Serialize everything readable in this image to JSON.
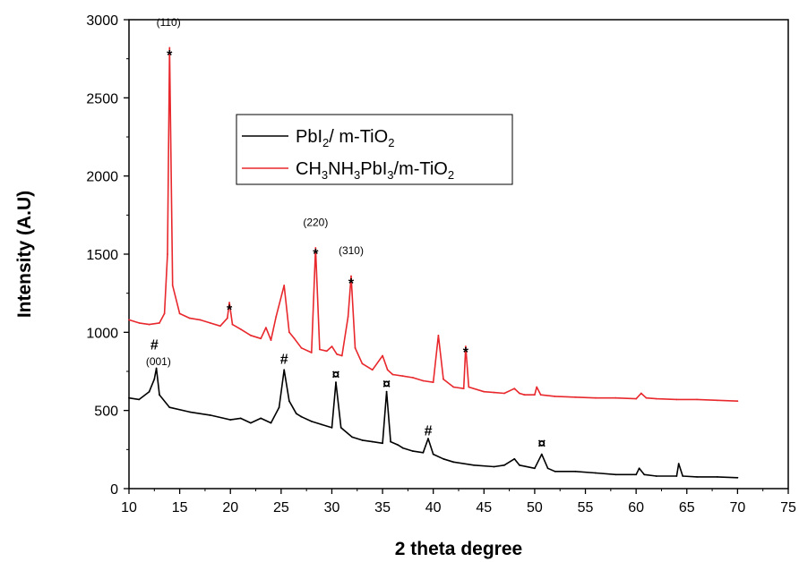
{
  "chart_data": {
    "type": "line",
    "xlabel": "2 theta degree",
    "ylabel": "Intensity (A.U)",
    "xlim": [
      10,
      75
    ],
    "ylim": [
      0,
      3000
    ],
    "xticks": [
      10,
      15,
      20,
      25,
      30,
      35,
      40,
      45,
      50,
      55,
      60,
      65,
      70,
      75
    ],
    "yticks": [
      0,
      500,
      1000,
      1500,
      2000,
      2500,
      3000
    ],
    "grid": false,
    "legend_position": "upper-center",
    "series": [
      {
        "name": "PbI2/ m-TiO2",
        "legend_parts": [
          [
            "PbI",
            ""
          ],
          [
            "2",
            "sub"
          ],
          [
            "/ m-TiO",
            ""
          ],
          [
            "2",
            "sub"
          ]
        ],
        "color": "#000000",
        "x": [
          10,
          11,
          12,
          12.5,
          12.7,
          13,
          14,
          16,
          18,
          20,
          21,
          22,
          23,
          24,
          24.8,
          25.3,
          25.8,
          26.5,
          27,
          28,
          29,
          30,
          30.4,
          30.9,
          32,
          33,
          34,
          35,
          35.4,
          35.8,
          36.5,
          37,
          38,
          39,
          39.5,
          40,
          41,
          42,
          44,
          46,
          47,
          48,
          48.5,
          50,
          50.7,
          51.3,
          52,
          54,
          56,
          58,
          60,
          60.3,
          60.8,
          62,
          64,
          64.2,
          64.6,
          66,
          68,
          70
        ],
        "y": [
          580,
          570,
          620,
          700,
          770,
          600,
          520,
          490,
          470,
          440,
          450,
          420,
          450,
          420,
          520,
          760,
          560,
          480,
          460,
          430,
          410,
          390,
          680,
          390,
          330,
          310,
          300,
          290,
          620,
          300,
          280,
          260,
          240,
          230,
          320,
          220,
          190,
          170,
          150,
          140,
          150,
          190,
          150,
          130,
          220,
          130,
          110,
          110,
          100,
          90,
          90,
          130,
          90,
          80,
          80,
          160,
          80,
          75,
          75,
          70
        ]
      },
      {
        "name": "CH3NH3PbI3/m-TiO2",
        "legend_parts": [
          [
            "CH",
            ""
          ],
          [
            "3",
            "sub"
          ],
          [
            "NH",
            ""
          ],
          [
            "3",
            "sub"
          ],
          [
            "PbI",
            ""
          ],
          [
            "3",
            "sub"
          ],
          [
            "/m-TiO",
            ""
          ],
          [
            "2",
            "sub"
          ]
        ],
        "color": "#e8282c",
        "x": [
          10,
          11,
          12,
          13,
          13.5,
          13.8,
          14.0,
          14.3,
          15,
          16,
          17,
          18,
          19,
          19.7,
          19.9,
          20.2,
          21,
          22,
          23,
          23.5,
          24,
          24.5,
          25.3,
          25.8,
          26.3,
          27,
          28,
          28.4,
          28.8,
          29.5,
          30,
          30.5,
          31,
          31.6,
          31.9,
          32.3,
          33,
          34,
          35,
          35.5,
          36,
          37,
          38,
          39,
          40,
          40.5,
          41,
          42,
          43,
          43.2,
          43.5,
          45,
          46,
          47,
          48,
          48.5,
          49,
          50,
          50.2,
          50.6,
          52,
          54,
          56,
          58,
          60,
          60.5,
          61,
          62,
          64,
          66,
          68,
          70
        ],
        "y": [
          1080,
          1060,
          1050,
          1060,
          1120,
          1500,
          2820,
          1300,
          1120,
          1090,
          1080,
          1060,
          1040,
          1090,
          1190,
          1050,
          1020,
          980,
          960,
          1030,
          950,
          1100,
          1300,
          1000,
          960,
          900,
          870,
          1540,
          890,
          880,
          910,
          860,
          850,
          1100,
          1360,
          900,
          800,
          760,
          850,
          760,
          730,
          720,
          710,
          690,
          680,
          980,
          700,
          650,
          640,
          910,
          650,
          620,
          615,
          610,
          640,
          610,
          600,
          600,
          650,
          600,
          590,
          585,
          580,
          580,
          575,
          610,
          580,
          575,
          570,
          570,
          565,
          560
        ]
      }
    ],
    "annotations": [
      {
        "label": "(110)",
        "x": 13.9,
        "y": 2960,
        "kind": "text"
      },
      {
        "label": "*",
        "x": 14.0,
        "y": 2800,
        "kind": "mark"
      },
      {
        "label": "*",
        "x": 19.9,
        "y": 1170,
        "kind": "mark"
      },
      {
        "label": "(220)",
        "x": 28.4,
        "y": 1680,
        "kind": "text"
      },
      {
        "label": "*",
        "x": 28.4,
        "y": 1530,
        "kind": "mark"
      },
      {
        "label": "(310)",
        "x": 31.9,
        "y": 1500,
        "kind": "text"
      },
      {
        "label": "*",
        "x": 31.9,
        "y": 1340,
        "kind": "mark"
      },
      {
        "label": "*",
        "x": 43.2,
        "y": 900,
        "kind": "mark"
      },
      {
        "label": "#",
        "x": 12.5,
        "y": 890,
        "kind": "mark"
      },
      {
        "label": "(001)",
        "x": 12.9,
        "y": 790,
        "kind": "text"
      },
      {
        "label": "#",
        "x": 25.3,
        "y": 800,
        "kind": "mark"
      },
      {
        "label": "¤",
        "x": 30.4,
        "y": 700,
        "kind": "mark"
      },
      {
        "label": "¤",
        "x": 35.4,
        "y": 640,
        "kind": "mark"
      },
      {
        "label": "#",
        "x": 39.5,
        "y": 340,
        "kind": "mark"
      },
      {
        "label": "¤",
        "x": 50.7,
        "y": 260,
        "kind": "mark"
      }
    ]
  }
}
